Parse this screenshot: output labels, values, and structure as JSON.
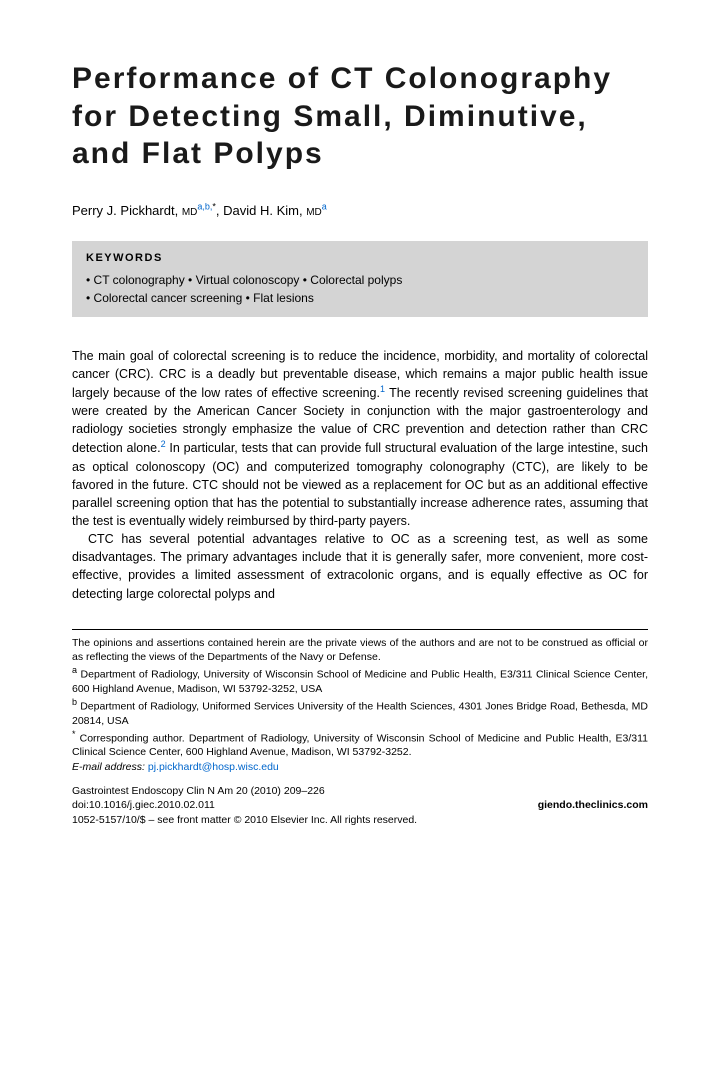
{
  "title": "Performance of CT Colonography for Detecting Small, Diminutive, and Flat Polyps",
  "authors_html": "Perry J. Pickhardt, <span class=\"cred\">MD</span><sup>a,b,</sup><sup class=\"star\">*</sup>, David H. Kim, <span class=\"cred\">MD</span><sup>a</sup>",
  "keywords_label": "KEYWORDS",
  "keywords_line1": "• CT colonography • Virtual colonoscopy • Colorectal polyps",
  "keywords_line2": "• Colorectal cancer screening • Flat lesions",
  "para1": "The main goal of colorectal screening is to reduce the incidence, morbidity, and mortality of colorectal cancer (CRC). CRC is a deadly but preventable disease, which remains a major public health issue largely because of the low rates of effective screening.",
  "cite1": "1",
  "para1b": " The recently revised screening guidelines that were created by the American Cancer Society in conjunction with the major gastroenterology and radiology societies strongly emphasize the value of CRC prevention and detection rather than CRC detection alone.",
  "cite2": "2",
  "para1c": " In particular, tests that can provide full structural evaluation of the large intestine, such as optical colonoscopy (OC) and computerized tomography colonography (CTC), are likely to be favored in the future. CTC should not be viewed as a replacement for OC but as an additional effective parallel screening option that has the potential to substantially increase adherence rates, assuming that the test is eventually widely reimbursed by third-party payers.",
  "para2": "CTC has several potential advantages relative to OC as a screening test, as well as some disadvantages. The primary advantages include that it is generally safer, more convenient, more cost-effective, provides a limited assessment of extracolonic organs, and is equally effective as OC for detecting large colorectal polyps and",
  "disclaimer": "The opinions and assertions contained herein are the private views of the authors and are not to be construed as official or as reflecting the views of the Departments of the Navy or Defense.",
  "affil_a": " Department of Radiology, University of Wisconsin School of Medicine and Public Health, E3/311 Clinical Science Center, 600 Highland Avenue, Madison, WI 53792-3252, USA",
  "affil_b": " Department of Radiology, Uniformed Services University of the Health Sciences, 4301 Jones Bridge Road, Bethesda, MD 20814, USA",
  "corresponding": " Corresponding author. Department of Radiology, University of Wisconsin School of Medicine and Public Health, E3/311 Clinical Science Center, 600 Highland Avenue, Madison, WI 53792-3252.",
  "email_label": "E-mail address:",
  "email": "pj.pickhardt@hosp.wisc.edu",
  "journal_line": "Gastrointest Endoscopy Clin N Am 20 (2010) 209–226",
  "doi_line": "doi:10.1016/j.giec.2010.02.011",
  "site": "giendo.theclinics.com",
  "copyright_line": "1052-5157/10/$ – see front matter © 2010 Elsevier Inc. All rights reserved."
}
